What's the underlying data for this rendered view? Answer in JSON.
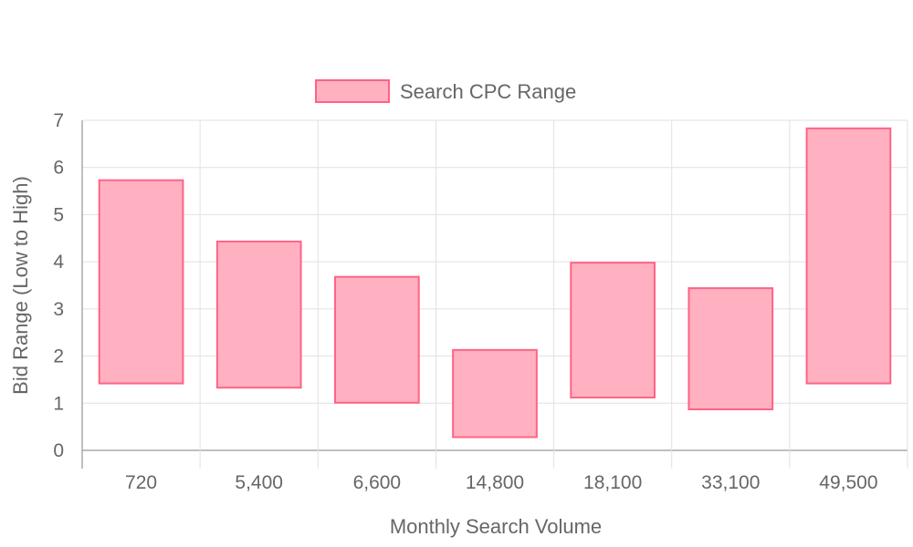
{
  "chart_data": {
    "type": "bar",
    "subtype": "floating-range",
    "categories": [
      "720",
      "5,400",
      "6,600",
      "14,800",
      "18,100",
      "33,100",
      "49,500"
    ],
    "series": [
      {
        "name": "Search CPC Range",
        "ranges": [
          [
            1.42,
            5.73
          ],
          [
            1.33,
            4.43
          ],
          [
            1.01,
            3.68
          ],
          [
            0.28,
            2.13
          ],
          [
            1.12,
            3.98
          ],
          [
            0.87,
            3.44
          ],
          [
            1.42,
            6.83
          ]
        ],
        "fill": "#ffb1c1",
        "stroke": "#ff6384"
      }
    ],
    "xlabel": "Monthly Search Volume",
    "ylabel": "Bid Range (Low to High)",
    "ylim": [
      0,
      7
    ],
    "yticks": [
      "0",
      "1",
      "2",
      "3",
      "4",
      "5",
      "6",
      "7"
    ],
    "grid": true,
    "legend_position": "top"
  }
}
